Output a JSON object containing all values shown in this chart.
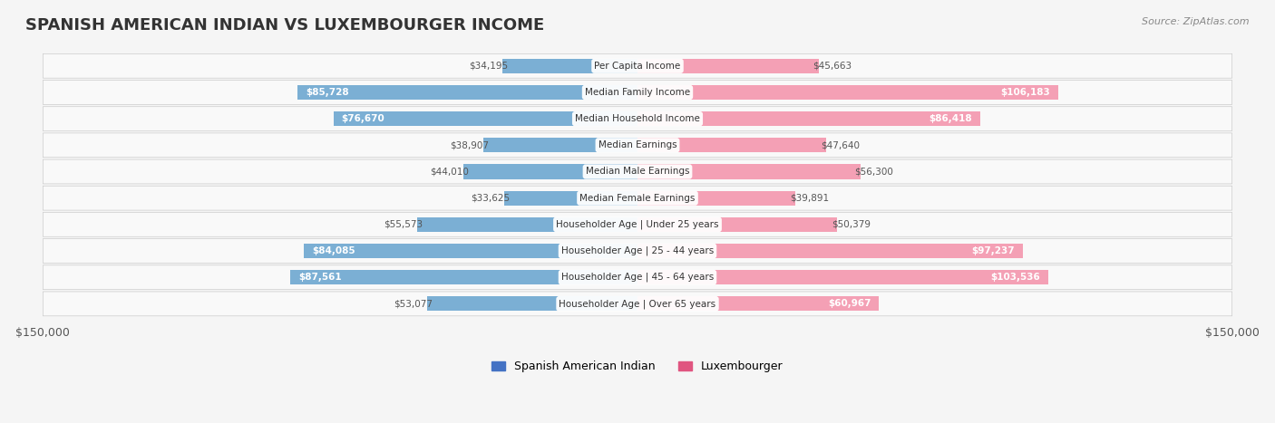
{
  "title": "SPANISH AMERICAN INDIAN VS LUXEMBOURGER INCOME",
  "source": "Source: ZipAtlas.com",
  "categories": [
    "Per Capita Income",
    "Median Family Income",
    "Median Household Income",
    "Median Earnings",
    "Median Male Earnings",
    "Median Female Earnings",
    "Householder Age | Under 25 years",
    "Householder Age | 25 - 44 years",
    "Householder Age | 45 - 64 years",
    "Householder Age | Over 65 years"
  ],
  "spanish_values": [
    34195,
    85728,
    76670,
    38907,
    44010,
    33625,
    55573,
    84085,
    87561,
    53077
  ],
  "luxembourger_values": [
    45663,
    106183,
    86418,
    47640,
    56300,
    39891,
    50379,
    97237,
    103536,
    60967
  ],
  "spanish_labels": [
    "$34,195",
    "$85,728",
    "$76,670",
    "$38,907",
    "$44,010",
    "$33,625",
    "$55,573",
    "$84,085",
    "$87,561",
    "$53,077"
  ],
  "luxembourger_labels": [
    "$45,663",
    "$106,183",
    "$86,418",
    "$47,640",
    "$56,300",
    "$39,891",
    "$50,379",
    "$97,237",
    "$103,536",
    "$60,967"
  ],
  "max_value": 150000,
  "spanish_color": "#7bafd4",
  "luxembourger_color": "#f4a0b5",
  "spanish_dark_color": "#4472c4",
  "luxembourger_dark_color": "#e05580",
  "bar_height": 0.55,
  "background_color": "#f5f5f5",
  "row_bg_color": "#ffffff",
  "legend_spanish": "Spanish American Indian",
  "legend_luxembourger": "Luxembourger"
}
